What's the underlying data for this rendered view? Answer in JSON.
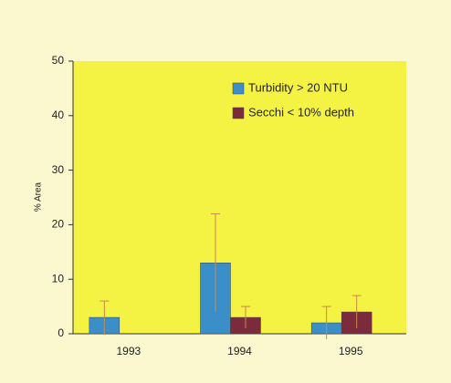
{
  "chart_data": {
    "type": "bar",
    "categories": [
      "1993",
      "1994",
      "1995"
    ],
    "series": [
      {
        "name": "Turbidity > 20 NTU",
        "color": "#3b8fc9",
        "values": [
          3,
          13,
          2
        ],
        "errors": [
          3,
          9,
          3
        ]
      },
      {
        "name": "Secchi < 10% depth",
        "color": "#7b2b3c",
        "values": [
          0,
          3,
          4
        ],
        "errors": [
          null,
          2,
          3
        ]
      }
    ],
    "ylabel": "% Area",
    "ylim": [
      0,
      50
    ],
    "yticks": [
      0,
      10,
      20,
      30,
      40,
      50
    ],
    "legend": "top-right"
  }
}
